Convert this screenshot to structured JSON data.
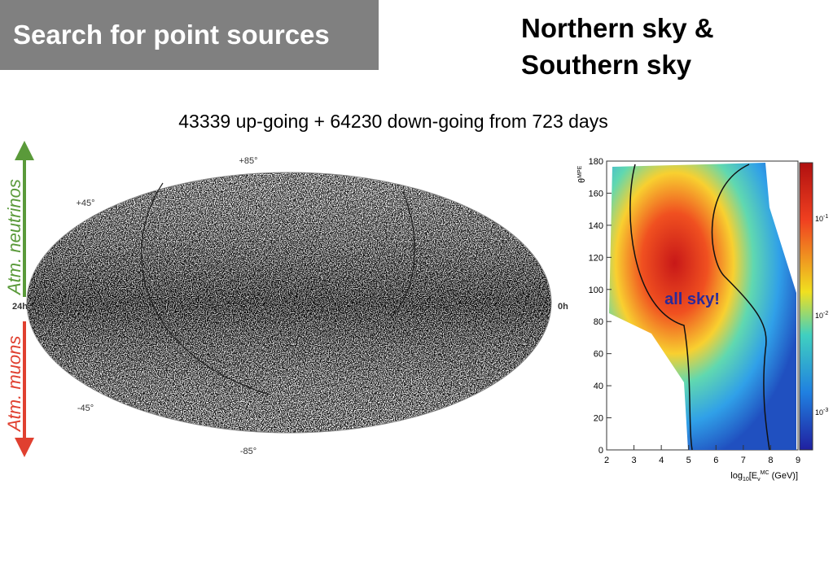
{
  "header": {
    "title": "Search for point sources",
    "subtitle": [
      "Northern sky &",
      "Southern sky"
    ]
  },
  "skymap": {
    "title": "43339 up-going + 64230 down-going from 723 days",
    "labels": {
      "top": "+85°",
      "upper": "+45°",
      "left": "24h",
      "right": "0h",
      "lower": "-45°",
      "bottom": "-85°"
    },
    "arrow_up": "Atm. neutrinos",
    "arrow_down": "Atm. muons"
  },
  "heatmap": {
    "y_label": {
      "symbol": "θ",
      "sup": "MPE"
    },
    "x_label": {
      "pre": "log",
      "sub": "10",
      "mid": "[E",
      "sub2": "ν",
      "sup": "MC",
      "post": " (GeV)]"
    },
    "yticks": [
      "0",
      "20",
      "40",
      "60",
      "80",
      "100",
      "120",
      "140",
      "160",
      "180"
    ],
    "xticks": [
      "2",
      "3",
      "4",
      "5",
      "6",
      "7",
      "8",
      "9"
    ],
    "colorbar": [
      {
        "base": "10",
        "exp": "-1"
      },
      {
        "base": "10",
        "exp": "-2"
      },
      {
        "base": "10",
        "exp": "-3"
      }
    ],
    "annotation": "all sky!"
  }
}
